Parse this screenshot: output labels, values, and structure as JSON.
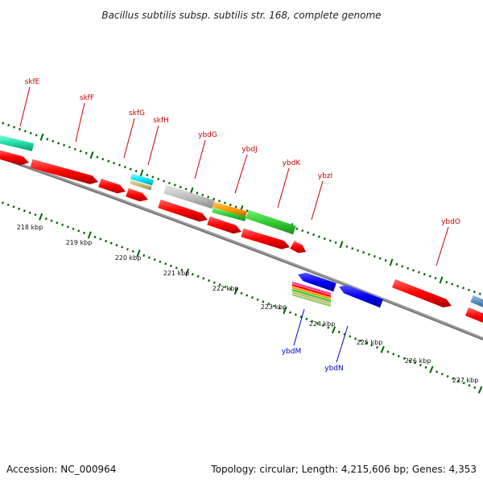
{
  "title": "Bacillus subtilis subsp. subtilis str. 168, complete genome",
  "footer": {
    "accession": "Accession: NC_000964",
    "summary": "Topology: circular; Length: 4,215,606 bp; Genes: 4,353"
  },
  "colors": {
    "backbone": "#808080",
    "forward_label": "#cc0000",
    "reverse_label": "#0000cc",
    "tick": "#006400",
    "cds_red": "#ff0000",
    "cds_blue": "#0000ee",
    "cds_green": "#33cc33",
    "cds_orange": "#ff9900",
    "cds_grey": "#c0c0c0",
    "cds_cyan": "#00e5ff",
    "cds_tan": "#c8b878",
    "cds_teal": "#22ddaa",
    "cds_steel": "#5588bb",
    "cds_pink": "#ff3399"
  },
  "scale_labels": [
    "218 kbp",
    "219 kbp",
    "220 kbp",
    "221 kbp",
    "222 kbp",
    "223 kbp",
    "224 kbp",
    "225 kbp",
    "226 kbp",
    "227 kbp"
  ],
  "forward_gene_labels": [
    "skfE",
    "skfF",
    "skfG",
    "skfH",
    "ybdG",
    "ybdJ",
    "ybdK",
    "ybzI",
    "ybdO"
  ],
  "reverse_gene_labels": [
    "ybdM",
    "ybdN"
  ]
}
